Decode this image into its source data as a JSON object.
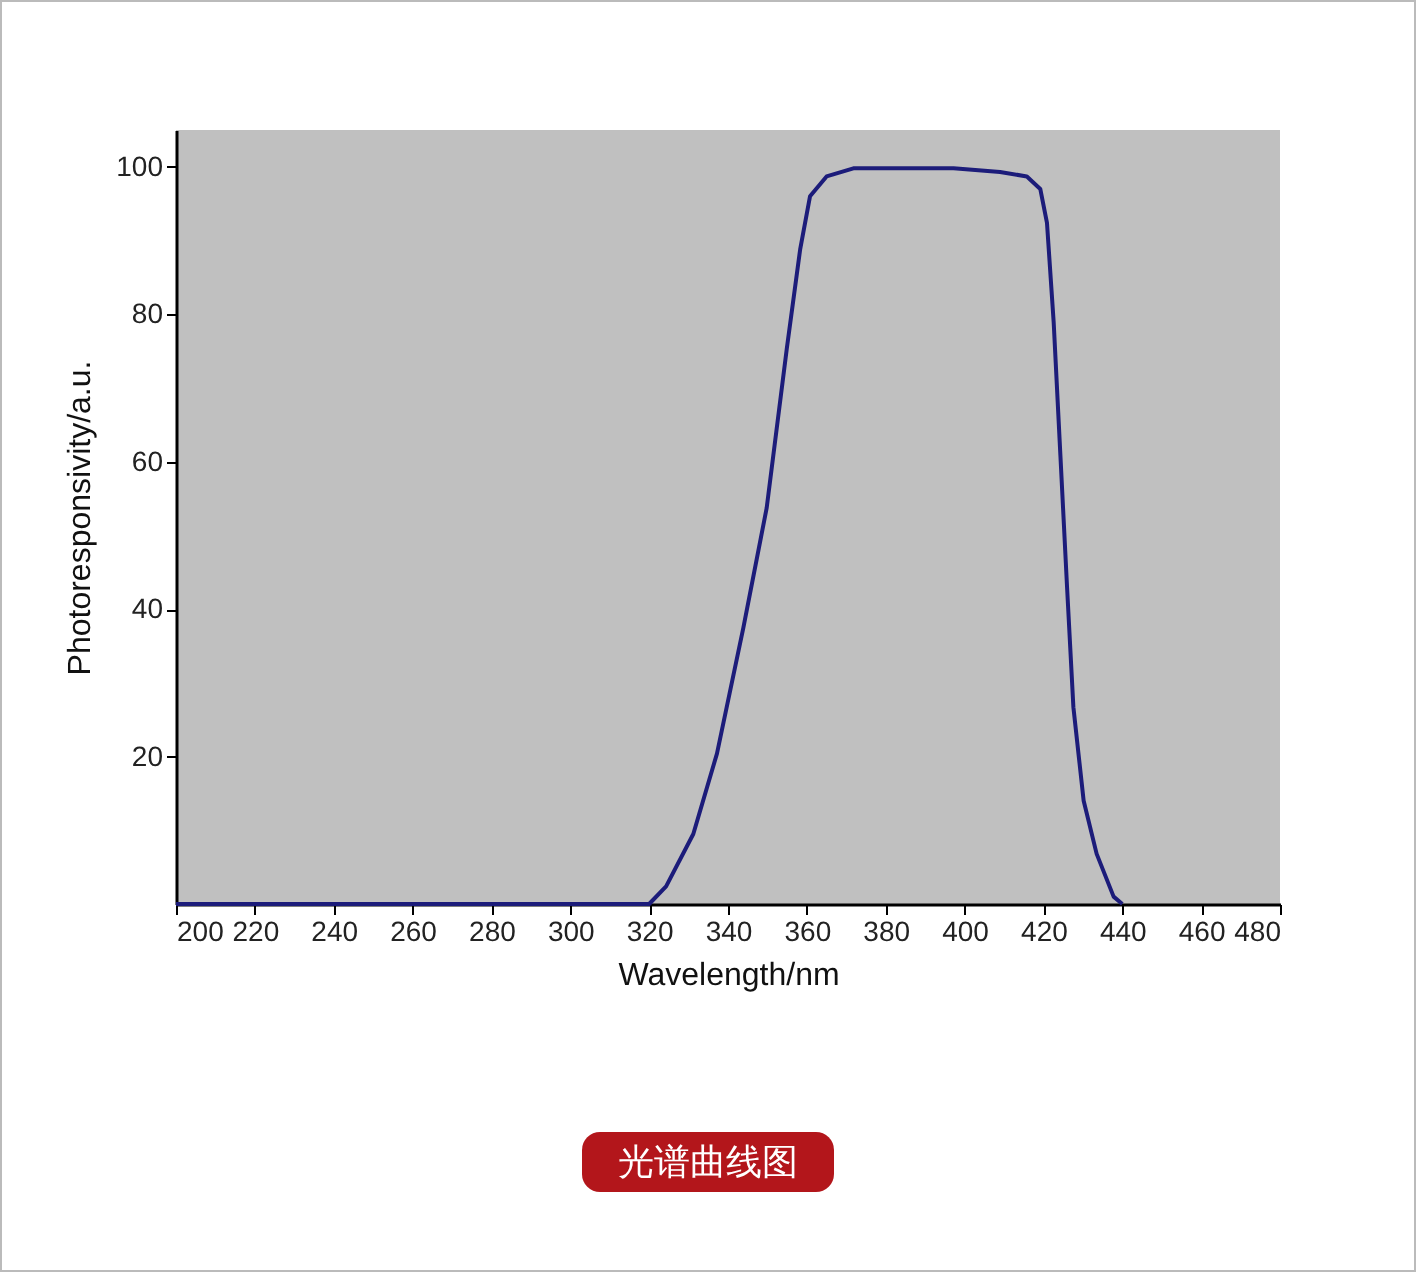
{
  "chart_data": {
    "type": "line",
    "xlabel": "Wavelength/nm",
    "ylabel": "Photoresponsivity/a.u.",
    "annotations": [
      "光谱曲线图"
    ],
    "x": [
      200,
      320,
      324.3,
      331.2,
      337.2,
      343.9,
      349.8,
      354.9,
      358.3,
      360.8,
      365,
      371.8,
      397.2,
      409,
      415.8,
      419.2,
      420.9,
      422.6,
      424.3,
      426,
      427.6,
      430.2,
      433.5,
      437.8,
      440
    ],
    "series": [
      {
        "color": "#1c1c7a",
        "values": [
          0,
          0,
          2.4,
          9.5,
          20.4,
          37.5,
          53.7,
          75.3,
          88.8,
          96,
          98.7,
          99.8,
          99.8,
          99.3,
          98.7,
          97,
          92.4,
          78.9,
          60.9,
          42.9,
          26.7,
          14,
          6.8,
          1,
          0
        ]
      }
    ],
    "xlim": [
      200,
      480
    ],
    "xticks": [
      200,
      220,
      240,
      260,
      280,
      300,
      320,
      340,
      360,
      380,
      400,
      420,
      440,
      460,
      480
    ],
    "ylim": [
      0,
      105
    ],
    "yticks": [
      20,
      40,
      60,
      80,
      100
    ],
    "grid": false,
    "legend": false,
    "marker": "none",
    "line_style": "solid"
  }
}
